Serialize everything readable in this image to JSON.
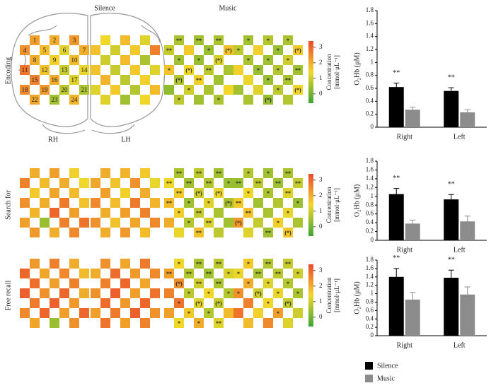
{
  "column_labels": [
    "Silence",
    "Music"
  ],
  "row_labels": [
    "Encoding",
    "Search for",
    "Free recall"
  ],
  "hemisphere_labels": [
    "RH",
    "LH"
  ],
  "channel_labels": [
    "1",
    "2",
    "3",
    "4",
    "5",
    "6",
    "7",
    "8",
    "9",
    "10",
    "11",
    "12",
    "13",
    "14",
    "15",
    "16",
    "17",
    "18",
    "19",
    "20",
    "21",
    "22",
    "23",
    "24"
  ],
  "colorbar": {
    "label": [
      "Concentration",
      "[mmol·μL⁻¹]"
    ],
    "lim": [
      -0.6,
      3.4
    ],
    "ticks": [
      0,
      1,
      2,
      3
    ],
    "colors": [
      "#3fa535",
      "#f2d72b",
      "#ec4a2c"
    ]
  },
  "heatmaps": [
    [
      {
        "values": [
          2.2,
          2.0,
          2.3,
          2.4,
          1.8,
          1.2,
          2.0,
          2.0,
          1.5,
          1.8,
          2.8,
          1.7,
          0.9,
          1.3,
          2.6,
          2.0,
          1.2,
          2.5,
          2.3,
          0.8,
          0.6,
          2.1,
          0.5,
          1.9
        ]
      },
      {
        "values": [
          1.4,
          1.8,
          1.2,
          1.7,
          1.0,
          1.6,
          2.6,
          1.0,
          1.8,
          0.6,
          1.7,
          0.9,
          1.6,
          1.2,
          1.9,
          0.8,
          1.5,
          1.2,
          1.6,
          0.7,
          1.8,
          1.2,
          0.5,
          1.4
        ]
      },
      {
        "values": [
          0.6,
          0.5,
          0.6,
          0.9,
          1.6,
          0.4,
          1.7,
          0.5,
          0.4,
          1.1,
          1.7,
          1.4,
          0.8,
          0.6,
          0.7,
          1.5,
          0.5,
          0.3,
          1.0,
          0.6,
          1.4,
          0.8,
          0.5,
          0.6
        ],
        "labels": [
          "**",
          "**",
          "**",
          "**",
          null,
          "*",
          "(*)",
          "*",
          "*",
          "(*)",
          "*",
          "(*)",
          "**",
          null,
          "(*)",
          "**",
          null,
          null,
          "*",
          null,
          null,
          "*",
          null,
          "*"
        ]
      },
      {
        "values": [
          0.5,
          0.7,
          0.6,
          0.8,
          1.5,
          0.4,
          1.6,
          0.6,
          0.5,
          1.0,
          1.5,
          0.4,
          0.7,
          0.5,
          1.3,
          0.4,
          0.6,
          0.5,
          1.2,
          0.8,
          1.4,
          0.6,
          0.4,
          0.7
        ],
        "labels": [
          "*",
          "*",
          "*",
          "*",
          null,
          "*",
          "(*)",
          "*",
          "*",
          "*",
          null,
          "*",
          "*",
          "**",
          null,
          "*",
          "**",
          null,
          null,
          "*",
          "(*)",
          null,
          "(*)",
          null
        ]
      }
    ],
    [
      {
        "values": [
          2.0,
          2.2,
          1.5,
          2.6,
          1.8,
          2.0,
          1.4,
          1.6,
          2.1,
          1.8,
          2.4,
          2.0,
          2.7,
          1.7,
          1.9,
          3.0,
          2.2,
          2.2,
          0.4,
          2.6,
          2.8,
          2.3,
          2.0,
          2.5
        ]
      },
      {
        "values": [
          2.0,
          1.9,
          1.6,
          2.1,
          1.7,
          2.4,
          1.3,
          2.2,
          1.5,
          2.0,
          2.5,
          1.8,
          2.7,
          1.9,
          2.0,
          2.2,
          2.6,
          2.4,
          1.7,
          2.1,
          2.5,
          2.0,
          2.3,
          1.8
        ]
      },
      {
        "values": [
          0.6,
          0.8,
          0.5,
          1.4,
          0.5,
          0.7,
          0.4,
          1.6,
          1.0,
          1.3,
          1.8,
          0.5,
          1.2,
          0.6,
          1.5,
          0.9,
          0.6,
          2.0,
          0.7,
          1.1,
          0.5,
          1.3,
          1.7,
          0.8
        ],
        "labels": [
          "**",
          "**",
          "**",
          "**",
          "**",
          "**",
          "*",
          "**",
          "(*)",
          "(*)",
          "**",
          "*",
          "*",
          "(*)",
          "*",
          "**",
          null,
          null,
          "*",
          "**",
          null,
          null,
          "**",
          null
        ]
      },
      {
        "values": [
          0.7,
          0.5,
          0.6,
          0.4,
          0.8,
          0.5,
          0.9,
          1.4,
          0.6,
          1.2,
          1.6,
          0.5,
          0.7,
          0.4,
          1.7,
          0.6,
          1.3,
          2.3,
          0.9,
          1.5,
          0.6,
          1.2,
          0.5,
          1.6
        ],
        "labels": [
          "*",
          "*",
          "**",
          "**",
          "**",
          "**",
          "**",
          "*",
          "*",
          "**",
          "**",
          null,
          null,
          "*",
          "**",
          null,
          "*",
          "(*)",
          null,
          "*",
          null,
          null,
          "**",
          "(*)"
        ]
      }
    ],
    [
      {
        "values": [
          2.3,
          2.6,
          2.0,
          3.0,
          2.1,
          2.5,
          1.8,
          2.9,
          2.2,
          2.6,
          3.1,
          2.4,
          3.0,
          2.0,
          2.7,
          3.1,
          2.3,
          2.5,
          3.0,
          2.2,
          3.0,
          2.1,
          0.4,
          2.4
        ]
      },
      {
        "values": [
          2.4,
          2.1,
          2.7,
          2.0,
          2.9,
          2.3,
          2.5,
          2.6,
          3.0,
          2.1,
          2.4,
          3.1,
          2.2,
          2.8,
          2.9,
          2.3,
          3.0,
          2.2,
          2.7,
          3.1,
          2.4,
          2.8,
          2.2,
          2.6
        ]
      },
      {
        "values": [
          1.4,
          0.6,
          0.8,
          2.2,
          0.7,
          0.5,
          1.1,
          2.4,
          1.0,
          0.6,
          2.6,
          0.8,
          1.4,
          0.7,
          2.8,
          1.2,
          0.9,
          2.2,
          1.6,
          0.7,
          1.8,
          1.4,
          2.0,
          1.2
        ],
        "labels": [
          "*",
          "**",
          "**",
          "**",
          "**",
          "**",
          "*",
          "(*)",
          "**",
          "**",
          null,
          "*",
          "*",
          "*",
          "*",
          "(*)",
          "(*)",
          null,
          "*",
          "*",
          null,
          "*",
          "*",
          "**"
        ]
      },
      {
        "values": [
          1.6,
          0.7,
          0.9,
          1.3,
          0.6,
          0.8,
          1.0,
          2.0,
          1.2,
          0.7,
          2.4,
          1.0,
          1.3,
          0.6,
          2.6,
          1.4,
          0.9,
          2.8,
          1.5,
          2.2,
          1.0,
          1.8,
          2.5,
          1.2
        ],
        "labels": [
          "*",
          "**",
          "**",
          "*",
          "**",
          "**",
          "*",
          "*",
          "*",
          "*",
          "*",
          "(*)",
          "*",
          "*",
          null,
          "*",
          "(*)",
          null,
          null,
          "*",
          null,
          null,
          null,
          null
        ]
      }
    ]
  ],
  "chart_data": [
    {
      "type": "bar",
      "y_label": "O₂Hb (μM)",
      "categories": [
        "Right",
        "Left"
      ],
      "series": [
        {
          "name": "Silence",
          "color": "#000000",
          "values": [
            0.62,
            0.56
          ],
          "errors": [
            0.06,
            0.05
          ]
        },
        {
          "name": "Music",
          "color": "#8c8c8c",
          "values": [
            0.27,
            0.23
          ],
          "errors": [
            0.04,
            0.04
          ]
        }
      ],
      "annotations": [
        "**",
        "**"
      ],
      "ylim": [
        0,
        1.8
      ],
      "yticks": [
        0,
        0.2,
        0.4,
        0.6,
        0.8,
        1,
        1.2,
        1.4,
        1.6,
        1.8
      ]
    },
    {
      "type": "bar",
      "y_label": "O₂Hb (μM)",
      "categories": [
        "Right",
        "Left"
      ],
      "series": [
        {
          "color": "#000000",
          "values": [
            1.05,
            0.93
          ],
          "errors": [
            0.13,
            0.11
          ]
        },
        {
          "color": "#8c8c8c",
          "values": [
            0.38,
            0.43
          ],
          "errors": [
            0.08,
            0.12
          ]
        }
      ],
      "annotations": [
        "**",
        "**"
      ],
      "ylim": [
        0,
        1.8
      ],
      "yticks": [
        0,
        0.2,
        0.4,
        0.6,
        0.8,
        1,
        1.2,
        1.4,
        1.6,
        1.8
      ]
    },
    {
      "type": "bar",
      "y_label": "O₂Hb (μM)",
      "categories": [
        "Right",
        "Left"
      ],
      "series": [
        {
          "color": "#000000",
          "values": [
            1.4,
            1.38
          ],
          "errors": [
            0.2,
            0.18
          ]
        },
        {
          "color": "#8c8c8c",
          "values": [
            0.86,
            0.98
          ],
          "errors": [
            0.17,
            0.18
          ]
        }
      ],
      "annotations": [
        "**",
        "**"
      ],
      "ylim": [
        0,
        1.8
      ],
      "yticks": [
        0,
        0.2,
        0.4,
        0.6,
        0.8,
        1,
        1.2,
        1.4,
        1.6,
        1.8
      ]
    }
  ]
}
